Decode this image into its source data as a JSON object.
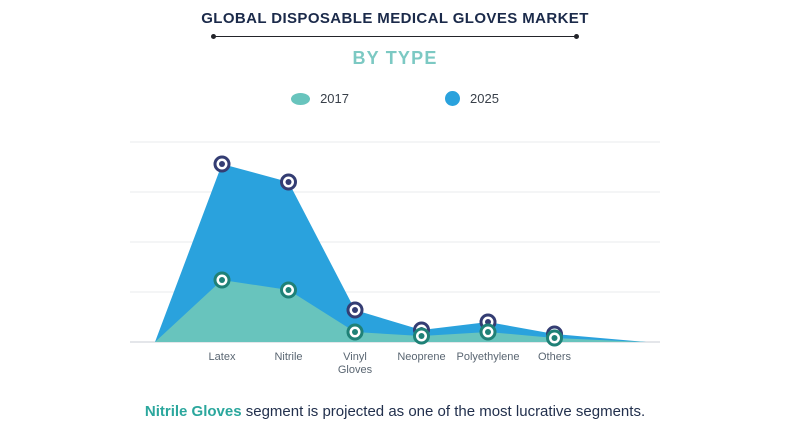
{
  "header": {
    "title": "GLOBAL DISPOSABLE MEDICAL GLOVES MARKET",
    "subtitle": "BY TYPE"
  },
  "chart_data": {
    "type": "area",
    "title": "GLOBAL DISPOSABLE MEDICAL GLOVES MARKET",
    "subtitle": "BY TYPE",
    "categories": [
      "Latex",
      "Nitrile",
      "Vinyl Gloves",
      "Neoprene",
      "Polyethylene",
      "Others"
    ],
    "series": [
      {
        "name": "2017",
        "color": "#68c4bd",
        "marker_color": "#1f8177",
        "values": [
          31,
          26,
          5,
          3,
          5,
          2
        ]
      },
      {
        "name": "2025",
        "color": "#2aa2dd",
        "marker_color": "#343d73",
        "values": [
          89,
          80,
          16,
          6,
          10,
          4
        ]
      }
    ],
    "ylim": [
      0,
      100
    ],
    "grid": true,
    "legend_position": "top"
  },
  "caption": {
    "highlight": "Nitrile Gloves",
    "text": " segment is projected as one of the most lucrative segments."
  },
  "colors": {
    "title": "#1b2a4a",
    "subtitle": "#7cc9c3",
    "caption_text": "#22304d",
    "caption_highlight": "#2ba79d",
    "grid_line": "#e9ebee",
    "axis_line": "#c9ced6"
  }
}
